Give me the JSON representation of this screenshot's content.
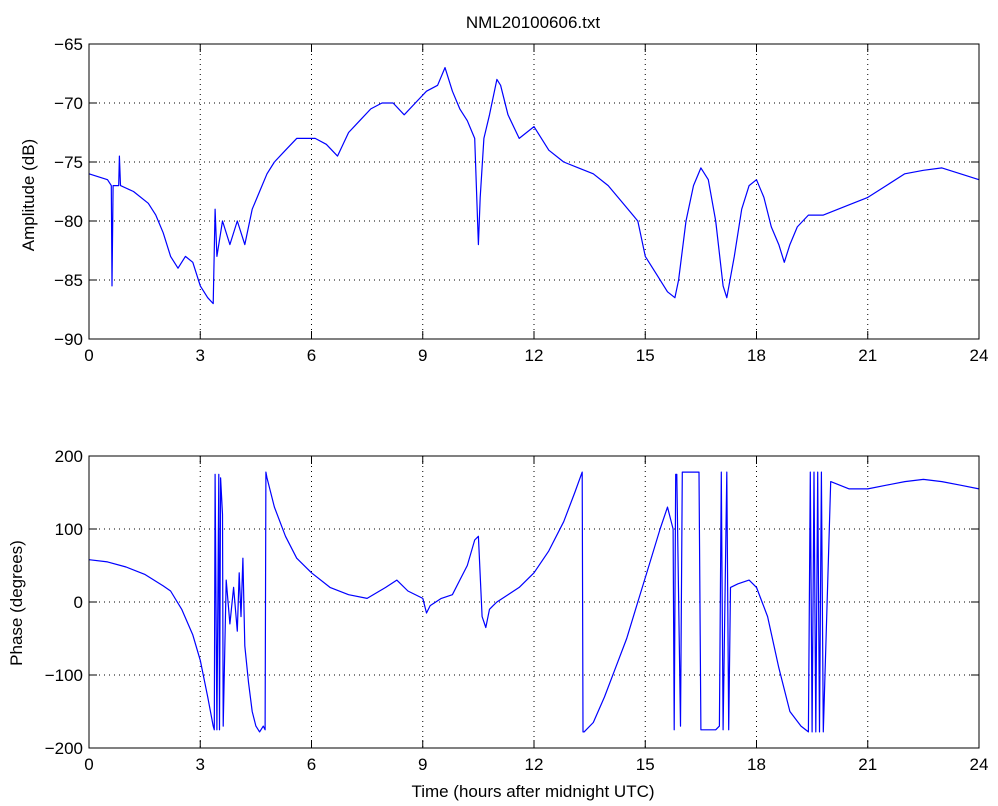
{
  "figure": {
    "title": "NML20100606.txt",
    "line_color": "#0000ff"
  },
  "chart_data": [
    {
      "type": "line",
      "title": "NML20100606.txt",
      "xlabel": "",
      "ylabel": "Amplitude (dB)",
      "xlim": [
        0,
        24
      ],
      "ylim": [
        -90,
        -65
      ],
      "xticks": [
        "0",
        "3",
        "6",
        "9",
        "12",
        "15",
        "18",
        "21",
        "24"
      ],
      "yticks": [
        "-65",
        "-70",
        "-75",
        "-80",
        "-85",
        "-90"
      ],
      "grid": true,
      "series": [
        {
          "x": [
            0,
            0.5,
            0.6,
            0.62,
            0.65,
            0.8,
            0.82,
            0.85,
            1.2,
            1.6,
            1.8,
            2.0,
            2.2,
            2.4,
            2.6,
            2.8,
            3.0,
            3.2,
            3.35,
            3.4,
            3.45,
            3.6,
            3.8,
            4.0,
            4.2,
            4.4,
            4.6,
            4.8,
            5.0,
            5.3,
            5.6,
            5.9,
            6.1,
            6.4,
            6.7,
            7.0,
            7.3,
            7.6,
            7.9,
            8.2,
            8.5,
            8.8,
            9.1,
            9.4,
            9.6,
            9.8,
            10.0,
            10.2,
            10.4,
            10.5,
            10.55,
            10.65,
            10.8,
            11.0,
            11.1,
            11.3,
            11.6,
            12.0,
            12.4,
            12.8,
            13.2,
            13.6,
            14.0,
            14.4,
            14.8,
            15.0,
            15.3,
            15.6,
            15.8,
            15.9,
            16.1,
            16.3,
            16.5,
            16.7,
            16.9,
            17.1,
            17.2,
            17.4,
            17.6,
            17.8,
            18.0,
            18.2,
            18.4,
            18.6,
            18.75,
            18.9,
            19.1,
            19.4,
            19.8,
            20.2,
            20.6,
            21.0,
            21.5,
            22.0,
            22.5,
            23.0,
            23.5,
            24.0
          ],
          "values": [
            -76,
            -76.5,
            -77,
            -85.5,
            -77,
            -77,
            -74.5,
            -77,
            -77.5,
            -78.5,
            -79.5,
            -81,
            -83,
            -84,
            -83,
            -83.5,
            -85.5,
            -86.5,
            -87,
            -79,
            -83,
            -80,
            -82,
            -80,
            -82,
            -79,
            -77.5,
            -76,
            -75,
            -74,
            -73,
            -73,
            -73,
            -73.5,
            -74.5,
            -72.5,
            -71.5,
            -70.5,
            -70,
            -70,
            -71,
            -70,
            -69,
            -68.5,
            -67,
            -69,
            -70.5,
            -71.5,
            -73,
            -82,
            -78,
            -73,
            -71,
            -68,
            -68.5,
            -71,
            -73,
            -72,
            -74,
            -75,
            -75.5,
            -76,
            -77,
            -78.5,
            -80,
            -83,
            -84.5,
            -86,
            -86.5,
            -85,
            -80,
            -77,
            -75.5,
            -76.5,
            -80,
            -85.5,
            -86.5,
            -83,
            -79,
            -77,
            -76.5,
            -78,
            -80.5,
            -82,
            -83.5,
            -82,
            -80.5,
            -79.5,
            -79.5,
            -79,
            -78.5,
            -78,
            -77,
            -76,
            -75.7,
            -75.5,
            -76,
            -76.5
          ]
        }
      ]
    },
    {
      "type": "line",
      "title": "",
      "xlabel": "Time (hours after midnight UTC)",
      "ylabel": "Phase (degrees)",
      "xlim": [
        0,
        24
      ],
      "ylim": [
        -200,
        200
      ],
      "xticks": [
        "0",
        "3",
        "6",
        "9",
        "12",
        "15",
        "18",
        "21",
        "24"
      ],
      "yticks": [
        "200",
        "100",
        "0",
        "-100",
        "-200"
      ],
      "grid": true,
      "series": [
        {
          "x": [
            0,
            0.5,
            1.0,
            1.5,
            2.0,
            2.2,
            2.5,
            2.8,
            3.0,
            3.2,
            3.35,
            3.38,
            3.4,
            3.45,
            3.5,
            3.52,
            3.55,
            3.6,
            3.62,
            3.7,
            3.8,
            3.9,
            4.0,
            4.05,
            4.1,
            4.15,
            4.2,
            4.3,
            4.4,
            4.5,
            4.6,
            4.7,
            4.75,
            4.77,
            4.8,
            5.0,
            5.3,
            5.6,
            6.0,
            6.5,
            7.0,
            7.5,
            8.0,
            8.3,
            8.6,
            9.0,
            9.1,
            9.2,
            9.5,
            9.8,
            10.0,
            10.2,
            10.4,
            10.5,
            10.6,
            10.7,
            10.8,
            10.9,
            11.0,
            11.3,
            11.6,
            12.0,
            12.4,
            12.8,
            13.1,
            13.3,
            13.32,
            13.35,
            13.6,
            13.9,
            14.2,
            14.5,
            14.8,
            15.1,
            15.4,
            15.6,
            15.75,
            15.78,
            15.82,
            15.85,
            15.95,
            16.0,
            16.05,
            16.2,
            16.45,
            16.5,
            16.55,
            16.7,
            16.9,
            17.0,
            17.05,
            17.1,
            17.2,
            17.25,
            17.3,
            17.5,
            17.8,
            18.0,
            18.3,
            18.6,
            18.9,
            19.2,
            19.4,
            19.45,
            19.5,
            19.55,
            19.6,
            19.65,
            19.7,
            19.75,
            19.8,
            20.0,
            20.5,
            21.0,
            21.5,
            22.0,
            22.5,
            23.0,
            23.5,
            24.0
          ],
          "values": [
            58,
            55,
            48,
            38,
            22,
            15,
            -10,
            -45,
            -80,
            -130,
            -170,
            -175,
            175,
            -175,
            175,
            -175,
            170,
            120,
            -170,
            30,
            -30,
            20,
            -40,
            40,
            -20,
            60,
            -60,
            -110,
            -150,
            -170,
            -178,
            -170,
            -175,
            178,
            170,
            130,
            90,
            60,
            40,
            20,
            10,
            5,
            20,
            30,
            15,
            5,
            -15,
            -5,
            5,
            10,
            30,
            50,
            85,
            90,
            -20,
            -35,
            -10,
            -5,
            0,
            10,
            20,
            40,
            70,
            110,
            150,
            178,
            -178,
            -178,
            -165,
            -130,
            -90,
            -50,
            0,
            50,
            100,
            130,
            100,
            -175,
            175,
            175,
            -170,
            178,
            178,
            178,
            178,
            -175,
            -175,
            -175,
            -175,
            -170,
            178,
            -175,
            178,
            -175,
            20,
            25,
            30,
            20,
            -20,
            -90,
            -150,
            -170,
            -178,
            178,
            -178,
            178,
            -178,
            178,
            -178,
            178,
            -178,
            165,
            155,
            155,
            160,
            165,
            168,
            165,
            160,
            155
          ]
        }
      ]
    }
  ]
}
